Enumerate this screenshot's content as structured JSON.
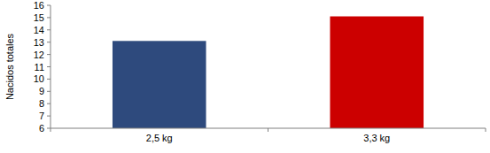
{
  "chart_data": {
    "type": "bar",
    "ylabel": "Nacidos totales",
    "categories": [
      "2,5 kg",
      "3,3 kg"
    ],
    "values": [
      13.1,
      15.1
    ],
    "colors": [
      "#2e4a7d",
      "#cc0000"
    ],
    "ylim": [
      6,
      16
    ],
    "yticks": [
      6,
      7,
      8,
      9,
      10,
      11,
      12,
      13,
      14,
      15,
      16
    ],
    "grid": false
  }
}
